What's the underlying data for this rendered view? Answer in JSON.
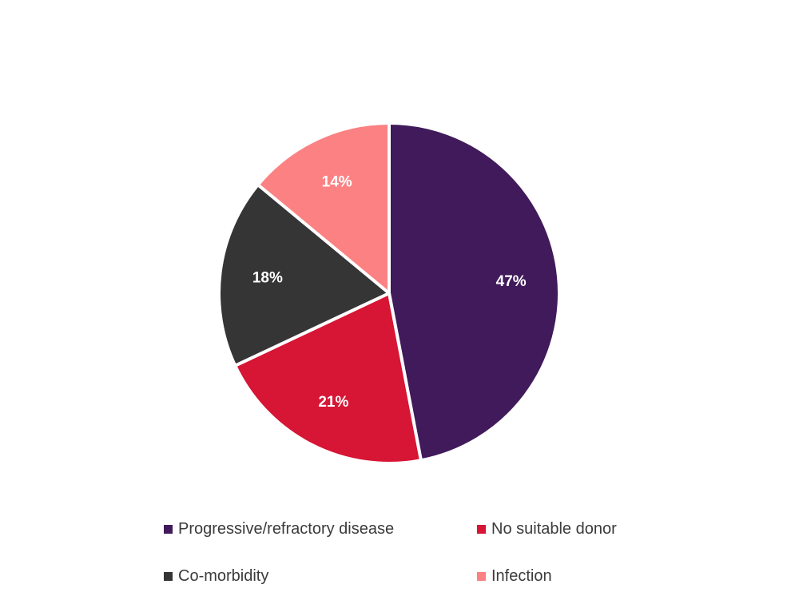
{
  "chart_data": {
    "type": "pie",
    "title": "",
    "categories": [
      "Progressive/refractory disease",
      "No suitable donor",
      "Co-morbidity",
      "Infection"
    ],
    "values": [
      47,
      21,
      18,
      14
    ],
    "data_labels": [
      "47%",
      "21%",
      "18%",
      "14%"
    ],
    "colors": [
      "#401a5a",
      "#d71535",
      "#353535",
      "#fb8183"
    ],
    "start_angle_deg": 0,
    "direction": "clockwise",
    "legend_position": "bottom",
    "legend": [
      {
        "label": "Progressive/refractory disease",
        "color": "#401a5a"
      },
      {
        "label": "No suitable donor",
        "color": "#d71535"
      },
      {
        "label": "Co-morbidity",
        "color": "#353535"
      },
      {
        "label": "Infection",
        "color": "#fb8183"
      }
    ]
  }
}
